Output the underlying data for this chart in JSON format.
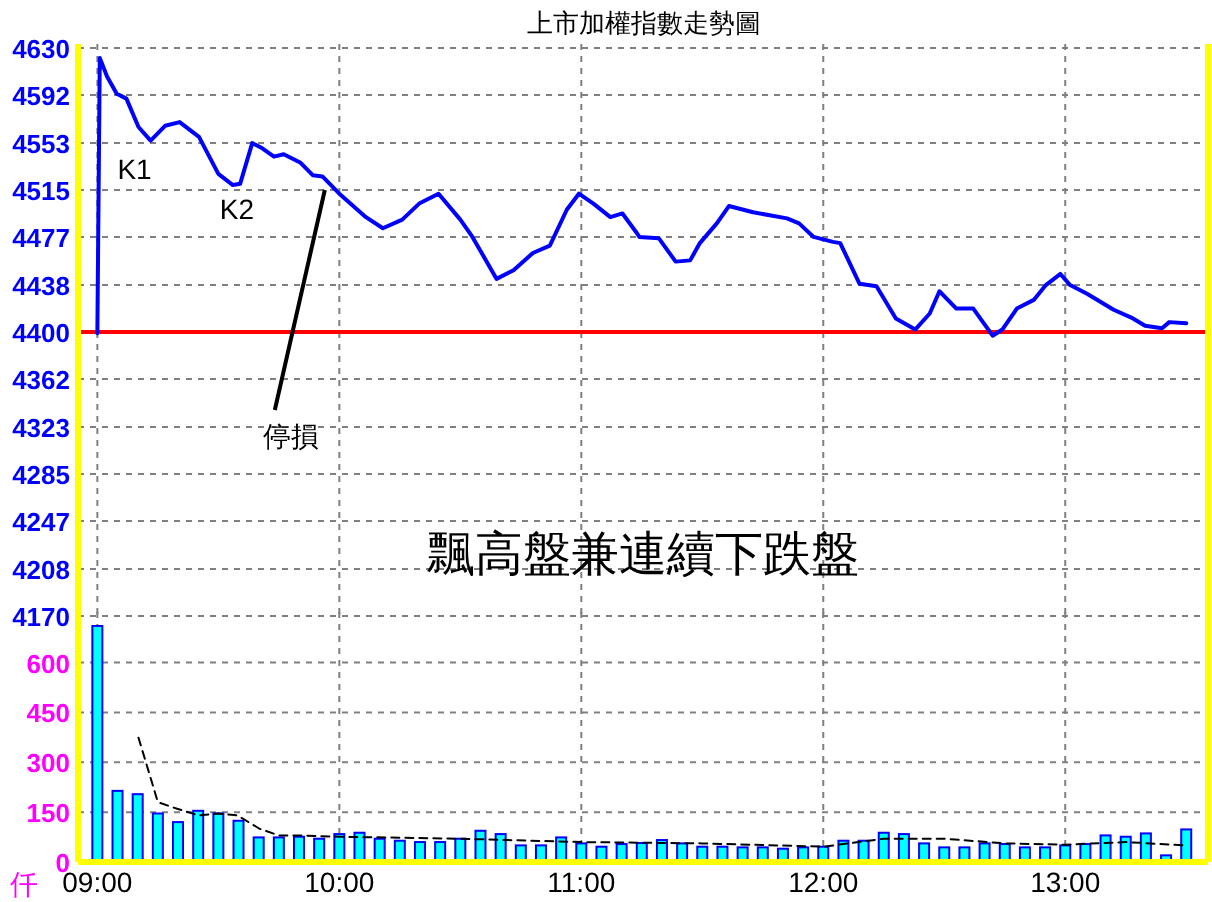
{
  "chart_data": [
    {
      "type": "line",
      "title": "上市加權指數走勢圖",
      "x": [
        9.0,
        9.01,
        9.04,
        9.08,
        9.12,
        9.17,
        9.22,
        9.28,
        9.34,
        9.42,
        9.5,
        9.56,
        9.59,
        9.64,
        9.68,
        9.73,
        9.77,
        9.84,
        9.89,
        9.93,
        10.0,
        10.11,
        10.18,
        10.26,
        10.33,
        10.41,
        10.5,
        10.55,
        10.65,
        10.72,
        10.8,
        10.87,
        10.94,
        10.99,
        11.05,
        11.12,
        11.17,
        11.23,
        11.24,
        11.32,
        11.39,
        11.45,
        11.49,
        11.56,
        11.61,
        11.71,
        11.85,
        11.9,
        11.96,
        12.04,
        12.07,
        12.15,
        12.22,
        12.3,
        12.38,
        12.44,
        12.48,
        12.55,
        12.62,
        12.7,
        12.74,
        12.8,
        12.87,
        12.92,
        12.98,
        13.02,
        13.09,
        13.2,
        13.28,
        13.33,
        13.4,
        13.43,
        13.5
      ],
      "series": [
        {
          "color": "#0000ff",
          "values": [
            4399,
            4622,
            4607,
            4593,
            4589,
            4566,
            4555,
            4567,
            4570,
            4558,
            4528,
            4519,
            4520,
            4553,
            4549,
            4542,
            4544,
            4537,
            4527,
            4526,
            4512,
            4493,
            4484,
            4491,
            4504,
            4512,
            4491,
            4477,
            4443,
            4450,
            4464,
            4470,
            4499,
            4512,
            4504,
            4493,
            4496,
            4480,
            4477,
            4476,
            4457,
            4458,
            4472,
            4488,
            4502,
            4497,
            4492,
            4488,
            4477,
            4473,
            4472,
            4439,
            4437,
            4411,
            4402,
            4415,
            4433,
            4419,
            4419,
            4397,
            4402,
            4419,
            4426,
            4438,
            4447,
            4438,
            4431,
            4418,
            4411,
            4405,
            4403,
            4408,
            4407
          ]
        }
      ],
      "xlim": [
        8.92,
        13.59
      ],
      "ylim": [
        4170,
        4630
      ],
      "xticks": [
        {
          "value": 9,
          "label": null
        },
        {
          "value": 10,
          "label": null
        },
        {
          "value": 11,
          "label": null
        },
        {
          "value": 12,
          "label": null
        },
        {
          "value": 13,
          "label": null
        }
      ],
      "yticks": [
        4170,
        4208,
        4247,
        4285,
        4323,
        4362,
        4400,
        4438,
        4477,
        4515,
        4553,
        4592,
        4630
      ],
      "tick_labels": "y",
      "grid": true,
      "ref_lines": [
        {
          "axis": "y",
          "value": 4400,
          "color": "#ff0000"
        }
      ],
      "annotations": [
        {
          "text": "K1",
          "x": 9.22,
          "y": 4555
        },
        {
          "text": "K2",
          "x": 9.56,
          "y": 4519
        },
        {
          "text": "停損",
          "x": 9.94,
          "y": 4515
        },
        "飄高盤兼連續下跌盤"
      ]
    },
    {
      "type": "bar",
      "ylabel": "仟",
      "x": [
        9,
        9.0833,
        9.1667,
        9.25,
        9.3333,
        9.4167,
        9.5,
        9.5833,
        9.6667,
        9.75,
        9.8333,
        9.9167,
        10,
        10.0833,
        10.1667,
        10.25,
        10.3333,
        10.4167,
        10.5,
        10.5833,
        10.6667,
        10.75,
        10.8333,
        10.9167,
        11,
        11.0833,
        11.1667,
        11.25,
        11.3333,
        11.4167,
        11.5,
        11.5833,
        11.6667,
        11.75,
        11.8333,
        11.9167,
        12,
        12.0833,
        12.1667,
        12.25,
        12.3333,
        12.4167,
        12.5,
        12.5833,
        12.6667,
        12.75,
        12.8333,
        12.9167,
        13,
        13.0833,
        13.1667,
        13.25,
        13.3333,
        13.4167,
        13.5
      ],
      "series": [
        {
          "color": "#00ffff",
          "values": [
            710,
            214,
            204,
            146,
            120,
            154,
            146,
            124,
            74,
            74,
            76,
            70,
            84,
            88,
            70,
            64,
            60,
            60,
            70,
            94,
            84,
            50,
            50,
            74,
            56,
            46,
            54,
            57,
            66,
            56,
            46,
            46,
            44,
            44,
            40,
            44,
            46,
            64,
            64,
            88,
            84,
            56,
            44,
            44,
            56,
            54,
            44,
            44,
            50,
            54,
            80,
            76,
            86,
            20,
            98
          ]
        },
        {
          "type": "line",
          "color": "#000000",
          "line_style": "dashed",
          "x": [
            9.17,
            9.25,
            9.33,
            9.42,
            9.5,
            9.58,
            9.67,
            9.75,
            9.83,
            10.0,
            10.5,
            11.0,
            11.5,
            12.0,
            12.25,
            12.5,
            12.75,
            13.0,
            13.25,
            13.5
          ],
          "values": [
            374,
            180,
            160,
            140,
            146,
            140,
            100,
            80,
            80,
            76,
            70,
            60,
            56,
            46,
            70,
            70,
            56,
            52,
            60,
            50
          ]
        }
      ],
      "xlim": [
        8.92,
        13.59
      ],
      "ylim": [
        0,
        740
      ],
      "xticks": [
        {
          "value": 9,
          "label": "09:00"
        },
        {
          "value": 10,
          "label": "10:00"
        },
        {
          "value": 11,
          "label": "11:00"
        },
        {
          "value": 12,
          "label": "12:00"
        },
        {
          "value": 13,
          "label": "13:00"
        }
      ],
      "yticks": [
        0,
        150,
        300,
        450,
        600
      ],
      "grid": true
    }
  ]
}
